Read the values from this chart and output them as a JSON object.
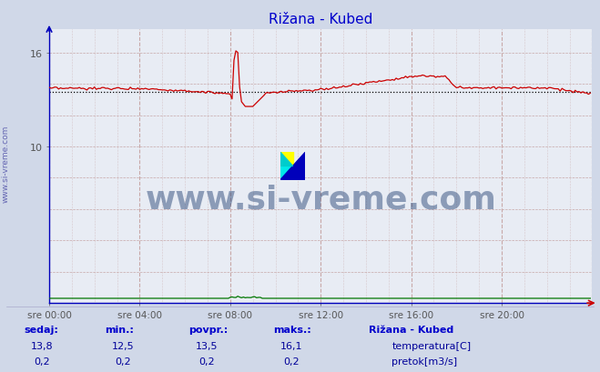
{
  "title": "Rižana - Kubed",
  "title_color": "#0000cc",
  "bg_color": "#d0d8e8",
  "plot_bg_color": "#e8ecf4",
  "x_tick_labels": [
    "sre 00:00",
    "sre 04:00",
    "sre 08:00",
    "sre 12:00",
    "sre 16:00",
    "sre 20:00"
  ],
  "x_tick_positions": [
    0,
    48,
    96,
    144,
    192,
    240
  ],
  "ylim": [
    0,
    17.5
  ],
  "xlim": [
    0,
    288
  ],
  "temp_color": "#cc0000",
  "flow_color": "#007700",
  "avg_color": "#000000",
  "avg_value": 13.5,
  "watermark_text": "www.si-vreme.com",
  "watermark_color": "#1a3a6e",
  "footer_label_color": "#0000cc",
  "footer_value_color": "#000099",
  "footer_headers": [
    "sedaj:",
    "min.:",
    "povpr.:",
    "maks.:"
  ],
  "footer_temp": [
    "13,8",
    "12,5",
    "13,5",
    "16,1"
  ],
  "footer_flow": [
    "0,2",
    "0,2",
    "0,2",
    "0,2"
  ],
  "legend_title": "Rižana - Kubed",
  "legend_temp": "temperatura[C]",
  "legend_flow": "pretok[m3/s]",
  "ylabel_text": "www.si-vreme.com",
  "ylabel_color": "#4040a0",
  "grid_color": "#c8b0b0",
  "n_points": 288
}
